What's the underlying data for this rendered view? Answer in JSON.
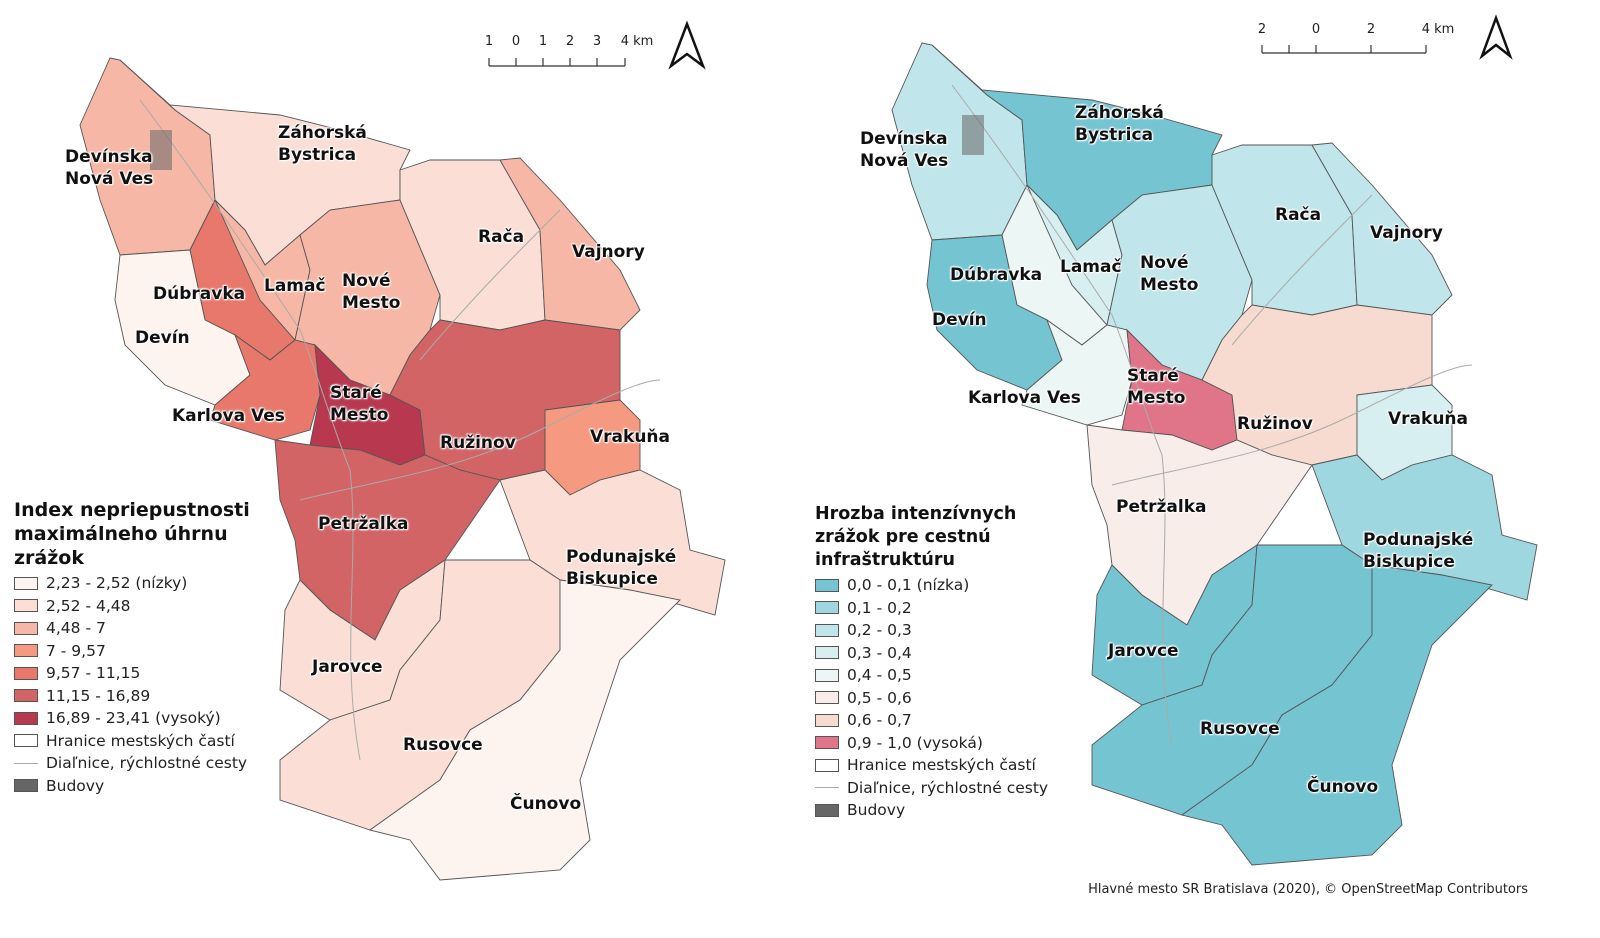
{
  "left_map": {
    "legend_title": "Index nepriepustnosti\nmaximálneho úhrnu\nzrážok",
    "classes": [
      {
        "label": "2,23 - 2,52 (nízky)",
        "color": "#fdf3ef"
      },
      {
        "label": "2,52 - 4,48",
        "color": "#fbdfd7"
      },
      {
        "label": "4,48 - 7",
        "color": "#f7b7a6"
      },
      {
        "label": "7 - 9,57",
        "color": "#f59a80"
      },
      {
        "label": "9,57 - 11,15",
        "color": "#e8786c"
      },
      {
        "label": "11,15 - 16,89",
        "color": "#d26466"
      },
      {
        "label": "16,89 - 23,41 (vysoký)",
        "color": "#b8394f"
      }
    ],
    "other_legend": {
      "boundaries": "Hranice mestských častí",
      "roads": "Diaľnice, rýchlostné cesty",
      "buildings": "Budovy"
    },
    "scale_labels": [
      "1",
      "0",
      "1",
      "2",
      "3",
      "4 km"
    ],
    "districts": [
      {
        "name": "Devínska\nNová Ves",
        "class": 2
      },
      {
        "name": "Záhorská\nBystrica",
        "class": 1
      },
      {
        "name": "Dúbravka",
        "class": 4
      },
      {
        "name": "Devín",
        "class": 0
      },
      {
        "name": "Lamač",
        "class": 2
      },
      {
        "name": "Nové\nMesto",
        "class": 2
      },
      {
        "name": "Rača",
        "class": 1
      },
      {
        "name": "Vajnory",
        "class": 2
      },
      {
        "name": "Karlova Ves",
        "class": 4
      },
      {
        "name": "Staré\nMesto",
        "class": 6
      },
      {
        "name": "Ružinov",
        "class": 5
      },
      {
        "name": "Vrakuňa",
        "class": 3
      },
      {
        "name": "Petržalka",
        "class": 5
      },
      {
        "name": "Podunajské\nBiskupice",
        "class": 1
      },
      {
        "name": "Jarovce",
        "class": 1
      },
      {
        "name": "Rusovce",
        "class": 1
      },
      {
        "name": "Čunovo",
        "class": 0
      }
    ]
  },
  "right_map": {
    "legend_title": "Hrozba intenzívnych\nzrážok pre cestnú\ninfraštruktúru",
    "classes": [
      {
        "label": "0,0 - 0,1 (nízka)",
        "color": "#74c4d2"
      },
      {
        "label": "0,1 - 0,2",
        "color": "#9fd7e0"
      },
      {
        "label": "0,2 - 0,3",
        "color": "#c0e5ea"
      },
      {
        "label": "0,3 - 0,4",
        "color": "#d7eff1"
      },
      {
        "label": "0,4 - 0,5",
        "color": "#ecf6f5"
      },
      {
        "label": "0,5 - 0,6",
        "color": "#f9edea"
      },
      {
        "label": "0,6 - 0,7",
        "color": "#f8dbd0"
      },
      {
        "label": "0,9 - 1,0 (vysoká)",
        "color": "#e07589"
      }
    ],
    "other_legend": {
      "boundaries": "Hranice mestských častí",
      "roads": "Diaľnice, rýchlostné cesty",
      "buildings": "Budovy"
    },
    "scale_labels": [
      "2",
      "0",
      "2",
      "4 km"
    ],
    "districts": [
      {
        "name": "Devínska\nNová Ves",
        "class": 2
      },
      {
        "name": "Záhorská\nBystrica",
        "class": 0
      },
      {
        "name": "Dúbravka",
        "class": 4
      },
      {
        "name": "Devín",
        "class": 0
      },
      {
        "name": "Lamač",
        "class": 3
      },
      {
        "name": "Nové\nMesto",
        "class": 2
      },
      {
        "name": "Rača",
        "class": 2
      },
      {
        "name": "Vajnory",
        "class": 2
      },
      {
        "name": "Karlova Ves",
        "class": 4
      },
      {
        "name": "Staré\nMesto",
        "class": 7
      },
      {
        "name": "Ružinov",
        "class": 6
      },
      {
        "name": "Vrakuňa",
        "class": 3
      },
      {
        "name": "Petržalka",
        "class": 5
      },
      {
        "name": "Podunajské\nBiskupice",
        "class": 1
      },
      {
        "name": "Jarovce",
        "class": 0
      },
      {
        "name": "Rusovce",
        "class": 0
      },
      {
        "name": "Čunovo",
        "class": 0
      }
    ]
  },
  "attribution": "Hlavné mesto SR Bratislava (2020), © OpenStreetMap Contributors",
  "colors": {
    "boundary": "#555555",
    "roads": "#aaaaaa",
    "buildings": "#666666"
  }
}
